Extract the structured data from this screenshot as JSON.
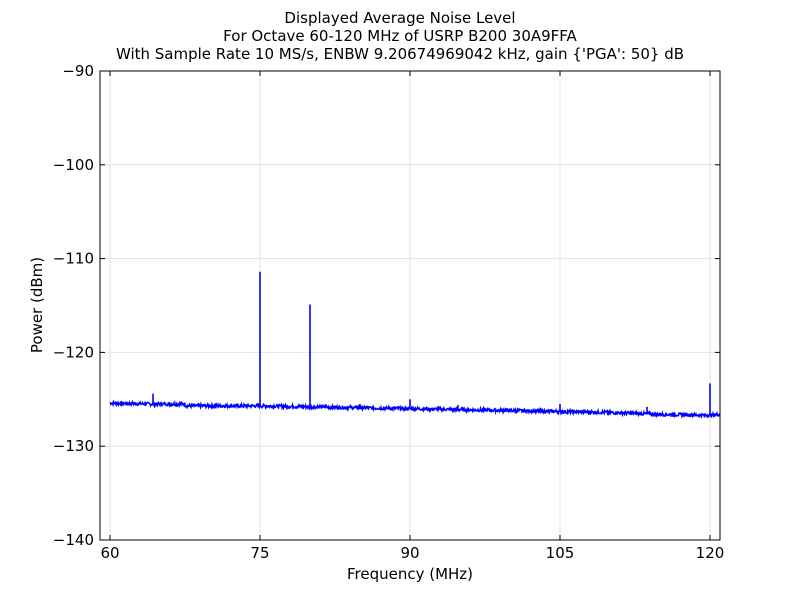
{
  "chart_data": {
    "type": "line",
    "title_lines": [
      "Displayed Average Noise Level",
      "For Octave 60-120 MHz of USRP B200 30A9FFA",
      "With Sample Rate 10 MS/s, ENBW 9.20674969042 kHz, gain {'PGA': 50} dB"
    ],
    "xlabel": "Frequency (MHz)",
    "ylabel": "Power (dBm)",
    "xlim": [
      59,
      121
    ],
    "ylim": [
      -140,
      -90
    ],
    "xticks": [
      60,
      75,
      90,
      105,
      120
    ],
    "xtick_labels": [
      "60",
      "75",
      "90",
      "105",
      "120"
    ],
    "yticks": [
      -90,
      -100,
      -110,
      -120,
      -130,
      -140
    ],
    "ytick_labels": [
      "−90",
      "−100",
      "−110",
      "−120",
      "−130",
      "−140"
    ],
    "grid": true,
    "series": [
      {
        "color": "#0000ff",
        "baseline": [
          [
            60,
            -125.4
          ],
          [
            64,
            -125.5
          ],
          [
            67.5,
            -125.5
          ],
          [
            67.6,
            -125.7
          ],
          [
            75,
            -125.7
          ],
          [
            80,
            -125.8
          ],
          [
            85,
            -125.9
          ],
          [
            90,
            -126.0
          ],
          [
            95,
            -126.1
          ],
          [
            100,
            -126.2
          ],
          [
            105,
            -126.3
          ],
          [
            110,
            -126.4
          ],
          [
            115,
            -126.6
          ],
          [
            120,
            -126.7
          ],
          [
            121,
            -126.6
          ]
        ],
        "spurs": [
          [
            64.3,
            -124.4
          ],
          [
            75.0,
            -111.4
          ],
          [
            80.0,
            -114.9
          ],
          [
            85.0,
            -125.5
          ],
          [
            90.0,
            -125.0
          ],
          [
            94.8,
            -125.6
          ],
          [
            105.0,
            -125.5
          ],
          [
            113.7,
            -125.8
          ],
          [
            120.0,
            -123.3
          ]
        ]
      }
    ]
  }
}
